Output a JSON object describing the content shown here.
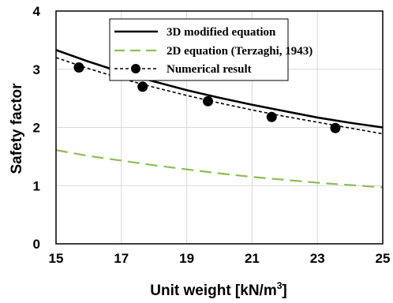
{
  "chart_data": {
    "type": "line",
    "xlabel": "Unit weight [kN/m",
    "xlabel_sup": "3",
    "xlabel_end": "]",
    "ylabel": "Safety factor",
    "xlim": [
      15,
      25
    ],
    "ylim": [
      0,
      4
    ],
    "xticks": [
      "15",
      "17",
      "19",
      "21",
      "23",
      "25"
    ],
    "yticks": [
      "0",
      "1",
      "2",
      "3",
      "4"
    ],
    "grid": true,
    "legend_position": "top-right",
    "series": [
      {
        "name": "3D modified equation",
        "style": "solid",
        "color": "#000000",
        "x": [
          15,
          16,
          17,
          18,
          19,
          20,
          21,
          22,
          23,
          24,
          25
        ],
        "y": [
          3.33,
          3.13,
          2.95,
          2.79,
          2.64,
          2.51,
          2.39,
          2.28,
          2.17,
          2.08,
          2.0
        ]
      },
      {
        "name": "2D equation (Terzaghi, 1943)",
        "style": "long-dash",
        "color": "#8cbf4f",
        "x": [
          15,
          16,
          17,
          18,
          19,
          20,
          21,
          22,
          23,
          24,
          25
        ],
        "y": [
          1.61,
          1.51,
          1.43,
          1.35,
          1.28,
          1.21,
          1.15,
          1.1,
          1.05,
          1.01,
          0.97
        ]
      },
      {
        "name": "Numerical result",
        "style": "short-dash",
        "color": "#000000",
        "marker": "circle",
        "x": [
          15,
          16,
          17,
          18,
          19,
          20,
          21,
          22,
          23,
          24,
          25
        ],
        "y": [
          3.2,
          3.01,
          2.84,
          2.69,
          2.55,
          2.42,
          2.3,
          2.19,
          2.09,
          1.99,
          1.89
        ],
        "points_x": [
          15.7,
          17.65,
          19.65,
          21.6,
          23.55
        ],
        "points_y": [
          3.03,
          2.7,
          2.45,
          2.18,
          1.99
        ]
      }
    ]
  }
}
